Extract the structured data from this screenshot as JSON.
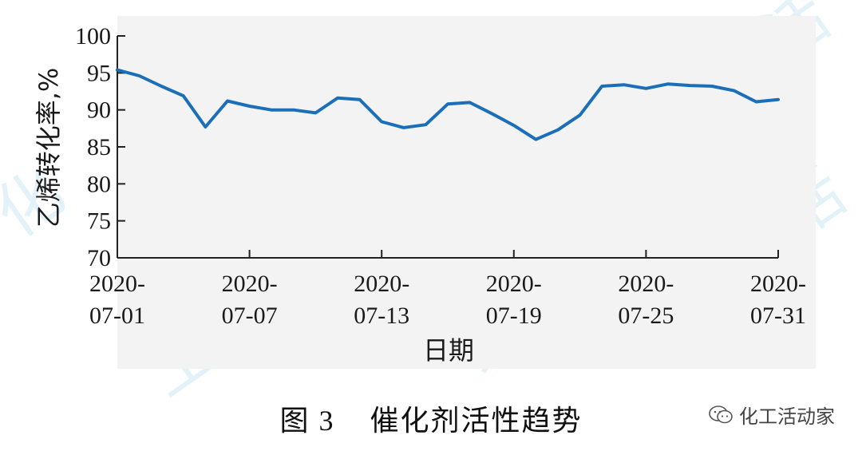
{
  "figure": {
    "caption_number": "图 3",
    "caption_title": "催化剂活性趋势",
    "watermark_text": "化工活动家",
    "watermark_icon": "wechat-bubble-icon"
  },
  "colors": {
    "line": "#1a6fb8",
    "plot_bg": "#f3f3f3",
    "axis": "#222222",
    "watermark_glyph": "#d7ecf6"
  },
  "chart_data": {
    "type": "line",
    "xlabel": "日期",
    "ylabel": "乙烯转化率,%",
    "ylim": [
      70,
      100
    ],
    "yticks": [
      70,
      75,
      80,
      85,
      90,
      95,
      100
    ],
    "xlim": [
      "2020-07-01",
      "2020-07-31"
    ],
    "xtick_labels": [
      [
        "2020-",
        "07-01"
      ],
      [
        "2020-",
        "07-07"
      ],
      [
        "2020-",
        "07-13"
      ],
      [
        "2020-",
        "07-19"
      ],
      [
        "2020-",
        "07-25"
      ],
      [
        "2020-",
        "07-31"
      ]
    ],
    "grid": false,
    "series": [
      {
        "x": [
          "2020-07-01",
          "2020-07-02",
          "2020-07-03",
          "2020-07-04",
          "2020-07-05",
          "2020-07-06",
          "2020-07-07",
          "2020-07-08",
          "2020-07-09",
          "2020-07-10",
          "2020-07-11",
          "2020-07-12",
          "2020-07-13",
          "2020-07-14",
          "2020-07-15",
          "2020-07-16",
          "2020-07-17",
          "2020-07-18",
          "2020-07-19",
          "2020-07-20",
          "2020-07-21",
          "2020-07-22",
          "2020-07-23",
          "2020-07-24",
          "2020-07-25",
          "2020-07-26",
          "2020-07-27",
          "2020-07-28",
          "2020-07-29",
          "2020-07-30",
          "2020-07-31"
        ],
        "values": [
          95.4,
          94.6,
          93.2,
          91.9,
          87.7,
          91.2,
          90.5,
          90.0,
          90.0,
          89.6,
          91.6,
          91.4,
          88.4,
          87.6,
          88.0,
          90.8,
          91.0,
          89.5,
          87.9,
          86.0,
          87.3,
          89.3,
          93.2,
          93.4,
          92.9,
          93.5,
          93.3,
          93.2,
          92.6,
          91.1,
          91.4
        ]
      }
    ]
  }
}
